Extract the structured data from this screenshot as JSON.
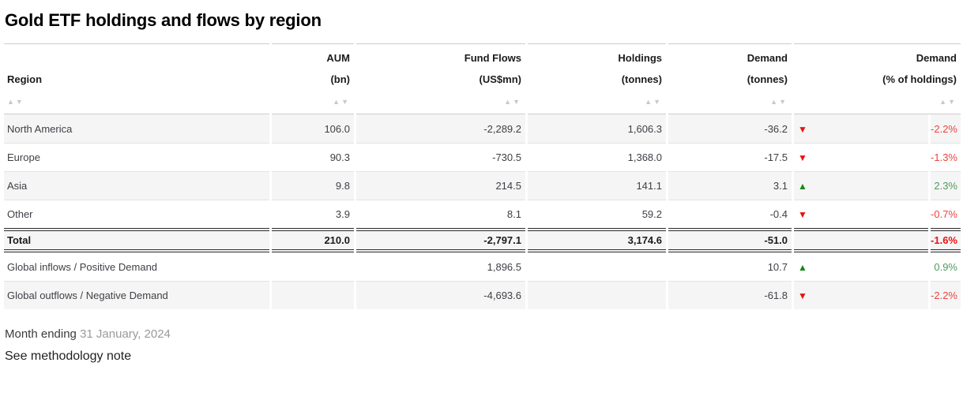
{
  "title": "Gold ETF holdings and flows by region",
  "icons": {
    "sort_asc": "▲",
    "sort_desc": "▼"
  },
  "colors": {
    "row_stripe": "#f5f5f5",
    "border_light": "#cccccc",
    "border_dark": "#2d2d2d",
    "sort_arrow": "#c8c8c8",
    "negative_text": "#ec4540",
    "negative_bold": "#ee1111",
    "positive_text": "#4f9b5f",
    "triangle_red": "#e8130c",
    "triangle_green": "#148a14"
  },
  "table": {
    "header": [
      {
        "line1": "",
        "line2": "Region"
      },
      {
        "line1": "AUM",
        "line2": "(bn)"
      },
      {
        "line1": "Fund Flows",
        "line2": "(US$mn)"
      },
      {
        "line1": "Holdings",
        "line2": "(tonnes)"
      },
      {
        "line1": "Demand",
        "line2": "(tonnes)"
      },
      {
        "line1": "Demand",
        "line2": "(% of holdings)"
      }
    ],
    "rows": [
      {
        "region": "North America",
        "aum": "106.0",
        "flows": "-2,289.2",
        "holdings": "1,606.3",
        "demand": "-36.2",
        "arrow_glyph": "▼",
        "trend": "down",
        "pct": "-2.2%",
        "pct_trend": "neg"
      },
      {
        "region": "Europe",
        "aum": "90.3",
        "flows": "-730.5",
        "holdings": "1,368.0",
        "demand": "-17.5",
        "arrow_glyph": "▼",
        "trend": "down",
        "pct": "-1.3%",
        "pct_trend": "neg"
      },
      {
        "region": "Asia",
        "aum": "9.8",
        "flows": "214.5",
        "holdings": "141.1",
        "demand": "3.1",
        "arrow_glyph": "▲",
        "trend": "up",
        "pct": "2.3%",
        "pct_trend": "pos"
      },
      {
        "region": "Other",
        "aum": "3.9",
        "flows": "8.1",
        "holdings": "59.2",
        "demand": "-0.4",
        "arrow_glyph": "▼",
        "trend": "down",
        "pct": "-0.7%",
        "pct_trend": "neg"
      }
    ],
    "total": {
      "region": "Total",
      "aum": "210.0",
      "flows": "-2,797.1",
      "holdings": "3,174.6",
      "demand": "-51.0",
      "pct": "-1.6%",
      "pct_trend": "neg"
    },
    "summary": [
      {
        "region": "Global inflows / Positive Demand",
        "flows": "1,896.5",
        "demand": "10.7",
        "arrow_glyph": "▲",
        "trend": "up",
        "pct": "0.9%",
        "pct_trend": "pos"
      },
      {
        "region": "Global outflows / Negative Demand",
        "flows": "-4,693.6",
        "demand": "-61.8",
        "arrow_glyph": "▼",
        "trend": "down",
        "pct": "-2.2%",
        "pct_trend": "neg"
      }
    ]
  },
  "footer": {
    "month_label": "Month ending",
    "month_value": "31 January, 2024",
    "methodology": "See methodology note"
  },
  "chart_data": {
    "type": "table",
    "title": "Gold ETF holdings and flows by region",
    "columns": [
      "Region",
      "AUM (bn)",
      "Fund Flows (US$mn)",
      "Holdings (tonnes)",
      "Demand (tonnes)",
      "Demand (% of holdings)"
    ],
    "rows": [
      [
        "North America",
        106.0,
        -2289.2,
        1606.3,
        -36.2,
        -2.2
      ],
      [
        "Europe",
        90.3,
        -730.5,
        1368.0,
        -17.5,
        -1.3
      ],
      [
        "Asia",
        9.8,
        214.5,
        141.1,
        3.1,
        2.3
      ],
      [
        "Other",
        3.9,
        8.1,
        59.2,
        -0.4,
        -0.7
      ],
      [
        "Total",
        210.0,
        -2797.1,
        3174.6,
        -51.0,
        -1.6
      ],
      [
        "Global inflows / Positive Demand",
        null,
        1896.5,
        null,
        10.7,
        0.9
      ],
      [
        "Global outflows / Negative Demand",
        null,
        -4693.6,
        null,
        -61.8,
        -2.2
      ]
    ],
    "notes": "Month ending 31 January, 2024"
  }
}
